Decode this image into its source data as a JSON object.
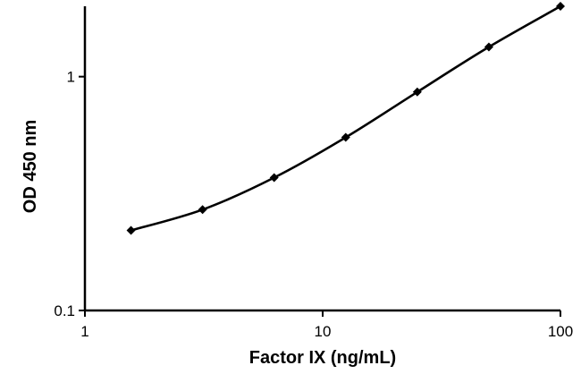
{
  "chart_data": {
    "type": "line",
    "title": "",
    "xlabel": "Factor IX (ng/mL)",
    "ylabel": "OD 450 nm",
    "x_scale": "log",
    "y_scale": "log",
    "xlim": [
      1,
      100
    ],
    "ylim": [
      0.1,
      2
    ],
    "x_ticks": [
      {
        "value": 1,
        "label": "1"
      },
      {
        "value": 10,
        "label": "10"
      },
      {
        "value": 100,
        "label": "100"
      }
    ],
    "y_ticks": [
      {
        "value": 0.1,
        "label": "0.1"
      },
      {
        "value": 1,
        "label": "1"
      }
    ],
    "grid": false,
    "legend": "none",
    "marker": "diamond",
    "line_color": "#000000",
    "series": [
      {
        "x": [
          1.5625,
          3.125,
          6.25,
          12.5,
          25,
          50,
          100
        ],
        "y": [
          0.22,
          0.27,
          0.37,
          0.55,
          0.86,
          1.34,
          2.0
        ]
      }
    ]
  }
}
